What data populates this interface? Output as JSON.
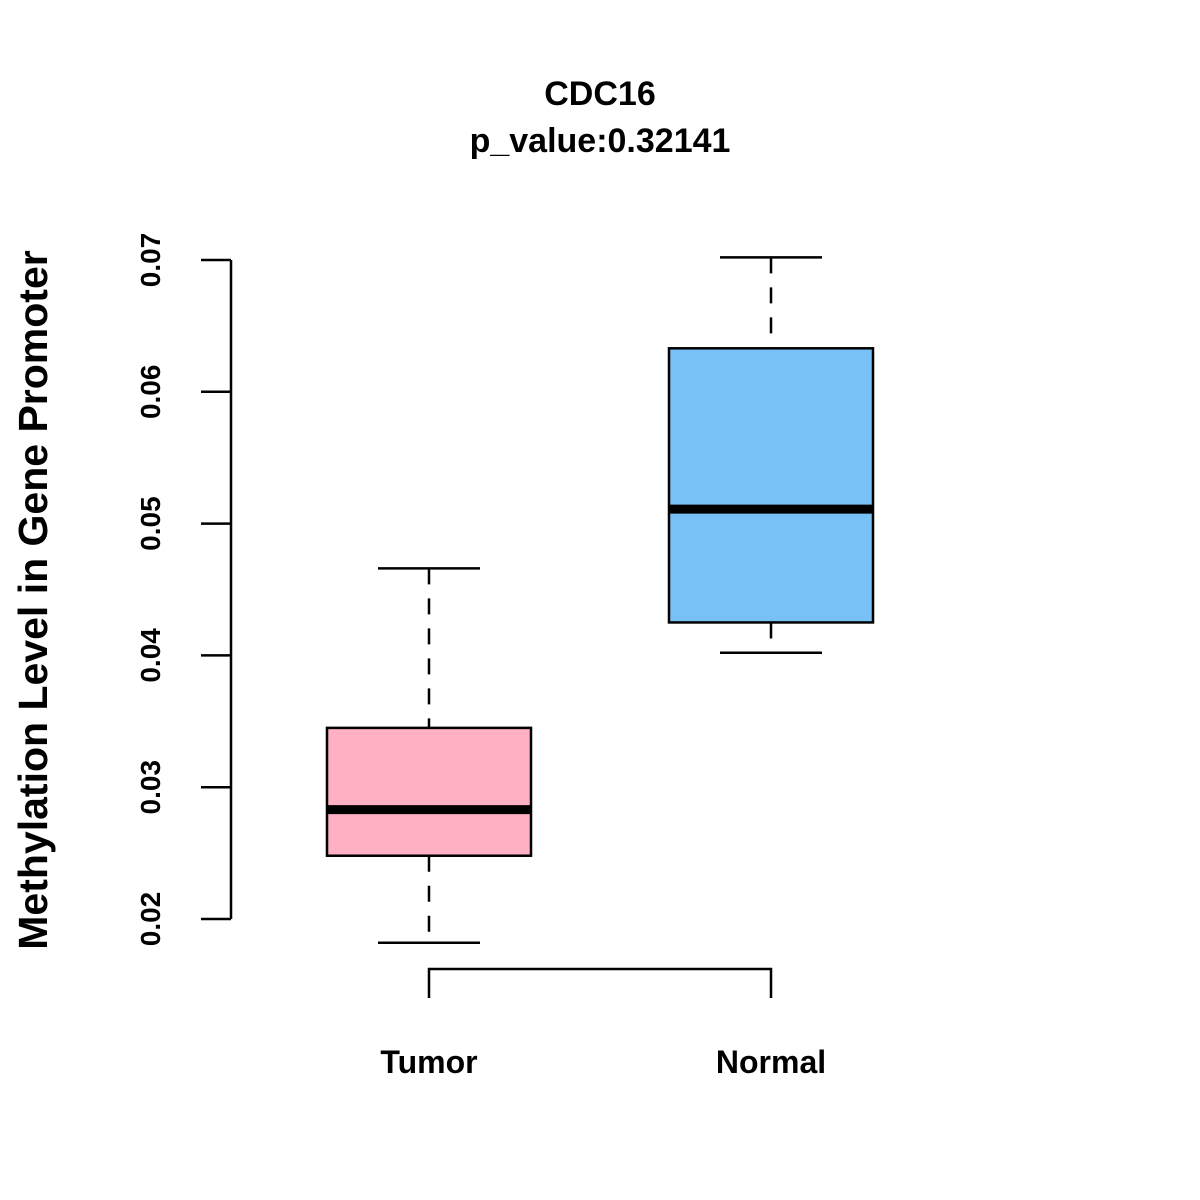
{
  "chart_data": {
    "type": "boxplot",
    "title": "CDC16",
    "subtitle": "p_value:0.32141",
    "xlabel": "",
    "ylabel": "Methylation Level in Gene Promoter",
    "ylim": [
      0.02,
      0.07
    ],
    "yticks": [
      0.02,
      0.03,
      0.04,
      0.05,
      0.06,
      0.07
    ],
    "ytick_labels": [
      "0.02",
      "0.03",
      "0.04",
      "0.05",
      "0.06",
      "0.07"
    ],
    "grid": false,
    "groups": [
      {
        "name": "Tumor",
        "color": "#FFB0C2",
        "whisker_low": 0.0182,
        "q1": 0.0248,
        "median": 0.0283,
        "q3": 0.0345,
        "whisker_high": 0.0466
      },
      {
        "name": "Normal",
        "color": "#78C1F7",
        "whisker_low": 0.0402,
        "q1": 0.0425,
        "median": 0.0511,
        "q3": 0.0633,
        "whisker_high": 0.0702
      }
    ],
    "comparison_bracket": {
      "from": "Tumor",
      "to": "Normal"
    }
  }
}
